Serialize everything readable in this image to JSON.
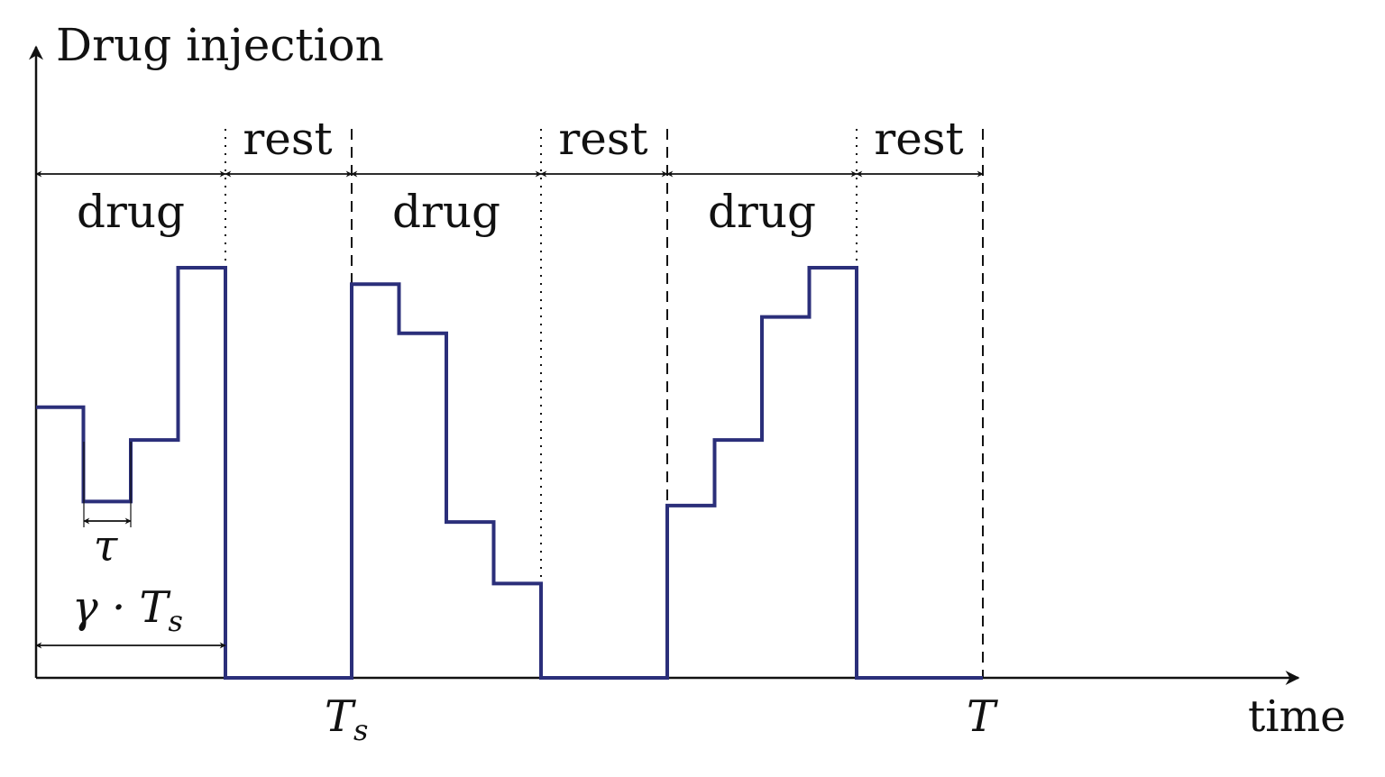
{
  "title": "Drug injection",
  "x_axis_label": "time",
  "phases": [
    {
      "label": "drug"
    },
    {
      "label": "rest"
    },
    {
      "label": "drug"
    },
    {
      "label": "rest"
    },
    {
      "label": "drug"
    },
    {
      "label": "rest"
    }
  ],
  "ticks": [
    {
      "main": "T",
      "sub": "s"
    },
    {
      "main": "T",
      "sub": ""
    }
  ],
  "tau_label": "τ",
  "gamma_label": {
    "main": "γ · T",
    "sub": "s"
  },
  "signal": {
    "color": "#2b2f7a",
    "levels": [
      [
        0.66,
        0.43,
        0.58,
        1.0
      ],
      [
        0.96,
        0.84,
        0.38,
        0.23
      ],
      [
        0.42,
        0.58,
        0.88,
        1.0
      ]
    ]
  }
}
